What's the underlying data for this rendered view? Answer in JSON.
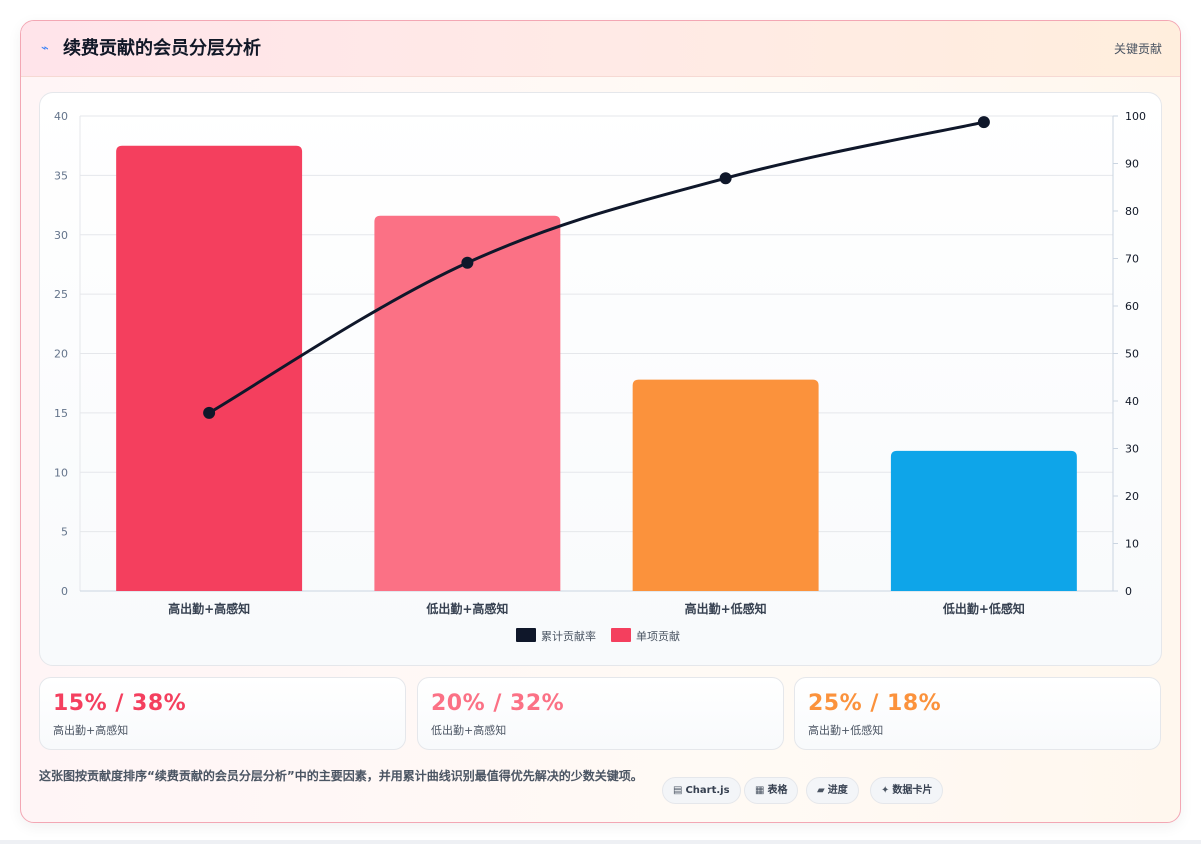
{
  "header": {
    "icon": "lightning-icon",
    "title": "续费贡献的会员分层分析",
    "tag": "关键贡献"
  },
  "chart_data": {
    "type": "bar",
    "categories": [
      "高出勤+高感知",
      "低出勤+高感知",
      "高出勤+低感知",
      "低出勤+低感知"
    ],
    "series": [
      {
        "name": "单项贡献",
        "type": "bar",
        "axis": "left",
        "values": [
          37.5,
          31.6,
          17.8,
          11.8
        ],
        "colors": [
          "#f43f5e",
          "#fb7185",
          "#fb923c",
          "#0ea5e9"
        ]
      },
      {
        "name": "累计贡献率",
        "type": "line",
        "axis": "right",
        "values": [
          37.5,
          69.1,
          86.9,
          98.7
        ],
        "color": "#0f172a"
      }
    ],
    "ylim_left": [
      0,
      40
    ],
    "yticks_left": [
      0,
      5,
      10,
      15,
      20,
      25,
      30,
      35,
      40
    ],
    "ylim_right": [
      0,
      100
    ],
    "yticks_right": [
      0,
      10,
      20,
      30,
      40,
      50,
      60,
      70,
      80,
      90,
      100
    ],
    "legend": [
      {
        "label": "累计贡献率",
        "color": "#0f172a"
      },
      {
        "label": "单项贡献",
        "color": "#f43f5e"
      }
    ],
    "legend_position": "bottom",
    "grid": true
  },
  "stats": [
    {
      "value": "15% / 38%",
      "label": "高出勤+高感知",
      "color": "#f43f5e"
    },
    {
      "value": "20% / 32%",
      "label": "低出勤+高感知",
      "color": "#fb7185"
    },
    {
      "value": "25% / 18%",
      "label": "高出勤+低感知",
      "color": "#fb923c"
    }
  ],
  "footer": {
    "text": "这张图按贡献度排序“续费贡献的会员分层分析”中的主要因素，并用累计曲线识别最值得优先解决的少数关键项。",
    "chips": [
      {
        "icon": "▤",
        "label": "Chart.js"
      },
      {
        "icon": "▦",
        "label": "表格"
      },
      {
        "icon": "▰",
        "label": "进度"
      },
      {
        "icon": "✦",
        "label": "数据卡片"
      }
    ]
  }
}
